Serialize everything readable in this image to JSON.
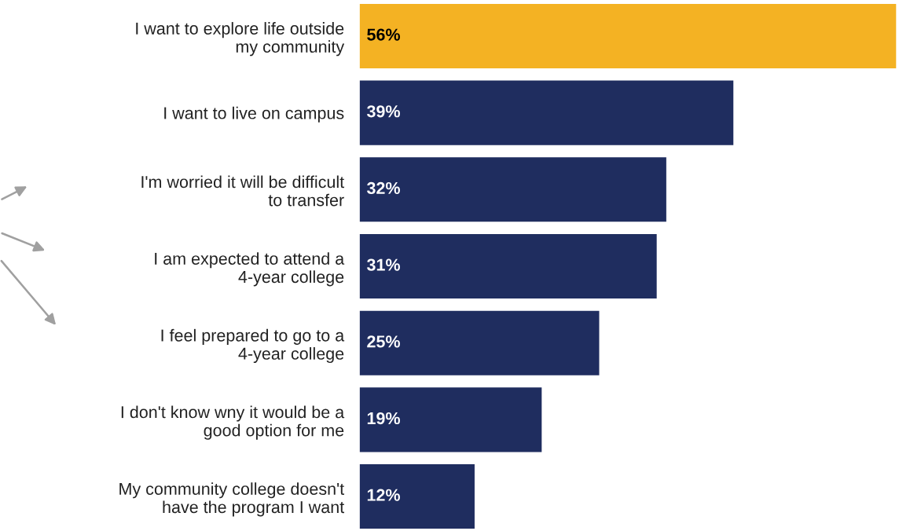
{
  "chart_data": {
    "type": "bar",
    "orientation": "horizontal",
    "categories": [
      "I want to explore life outside\nmy community",
      "I want to live on campus",
      "I'm worried it will be difficult\nto transfer",
      "I am expected to attend a\n4-year college",
      "I feel prepared to go to a\n4-year college",
      "I don't know wny it would be a\ngood option for me",
      "My community college doesn't\nhave the program I want"
    ],
    "values": [
      56,
      39,
      32,
      31,
      25,
      19,
      12
    ],
    "value_labels": [
      "56%",
      "39%",
      "32%",
      "31%",
      "25%",
      "19%",
      "12%"
    ],
    "colors": [
      "#f4b223",
      "#1f2d5f",
      "#1f2d5f",
      "#1f2d5f",
      "#1f2d5f",
      "#1f2d5f",
      "#1f2d5f"
    ],
    "grid": false,
    "legend": false
  }
}
